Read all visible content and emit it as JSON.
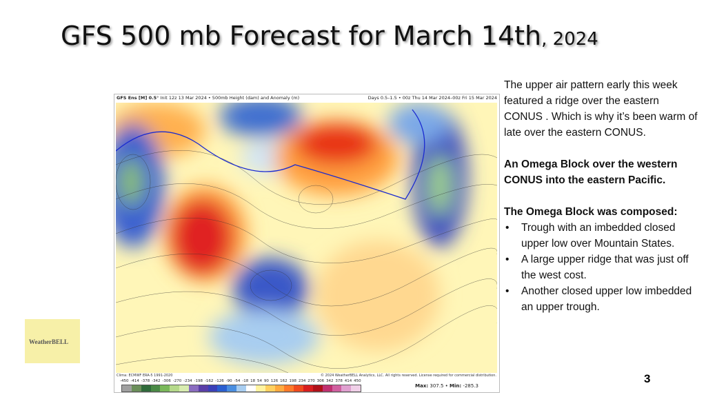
{
  "slide": {
    "title": "GFS 500 mb Forecast for March 14th",
    "title_year": ", 2024",
    "page_number": "3"
  },
  "map": {
    "header_left_bold": "GFS Ens [M] 0.5",
    "header_left": "° Init 12z 13 Mar 2024 • 500mb Height (dam) and Anomaly (m)",
    "header_right": "Days 0.5–1.5 • 00z Thu 14 Mar 2024–00z Fri 15 Mar 2024",
    "clim": "Clima: ECMWF ERA-5 1991-2020",
    "copyright": "© 2024 WeatherBELL Analytics, LLC. All rights reserved. License required for commercial distribution.",
    "colorbar_ticks": [
      "-450",
      "-414",
      "-378",
      "-342",
      "-306",
      "-270",
      "-234",
      "-198",
      "-162",
      "-126",
      "-90",
      "-54",
      "-18",
      "18",
      "54",
      "90",
      "126",
      "162",
      "198",
      "234",
      "270",
      "306",
      "342",
      "378",
      "414",
      "450"
    ],
    "colorbar_colors": [
      "#a0a0a0",
      "#6b8f5a",
      "#2f6b3a",
      "#4a8a45",
      "#7ab85a",
      "#b5d98a",
      "#d8ecb0",
      "#8a6cc0",
      "#5a3ea8",
      "#3a40b8",
      "#2a5fd0",
      "#4a8ee0",
      "#a8cdf0",
      "#ffffff",
      "#fff3a0",
      "#ffd060",
      "#ffaa40",
      "#ff7a2a",
      "#f04a1e",
      "#d81e1e",
      "#b01018",
      "#c03070",
      "#d060a0",
      "#e0a0d0",
      "#f0d0e8"
    ],
    "max_label": "Max:",
    "max_value": "307.5",
    "min_label": "Min:",
    "min_value": "-285.3",
    "logo_text": "WeatherBELL"
  },
  "commentary": {
    "intro": "The upper air pattern early this week featured a ridge over the eastern CONUS .  Which is why it’s been warm of late over the eastern CONUS.",
    "omega_heading": "An Omega Block over the western CONUS into the eastern  Pacific.",
    "composed_heading": "The Omega Block was composed:",
    "bullets": [
      "Trough with an imbedded closed upper low over Mountain States.",
      "A large upper ridge that was just off the west cost.",
      "Another closed upper low imbedded an upper trough."
    ]
  },
  "corner_logo": {
    "text": "WeatherBELL"
  }
}
